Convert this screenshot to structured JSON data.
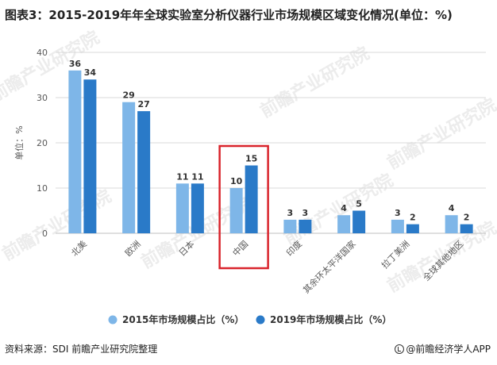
{
  "title": "图表3：2015-2019年年全球实验室分析仪器行业市场规模区域变化情况(单位：%)",
  "source": "资料来源：SDI 前瞻产业研究院整理",
  "credit": "@前瞻经济学人APP",
  "watermark": "前瞻产业研究院",
  "colors": {
    "series_2015": "#7eb6e8",
    "series_2019": "#2a7ac8",
    "highlight": "#d9242c",
    "grid": "#d9d9d9",
    "text": "#595959"
  },
  "chart_data": {
    "type": "bar",
    "ylabel": "单位：%",
    "ylim": [
      0,
      40
    ],
    "yticks": [
      0,
      10,
      20,
      30,
      40
    ],
    "grid": true,
    "legend_position": "bottom",
    "categories": [
      "北美",
      "欧洲",
      "日本",
      "中国",
      "印度",
      "其余环太平洋国家",
      "拉丁美洲",
      "全球其他地区"
    ],
    "series": [
      {
        "name": "2015年市场规模占比（%）",
        "values": [
          36,
          29,
          11,
          10,
          3,
          4,
          3,
          4
        ]
      },
      {
        "name": "2019年市场规模占比（%）",
        "values": [
          34,
          27,
          11,
          15,
          3,
          5,
          2,
          2
        ]
      }
    ],
    "highlighted_category": "中国"
  }
}
